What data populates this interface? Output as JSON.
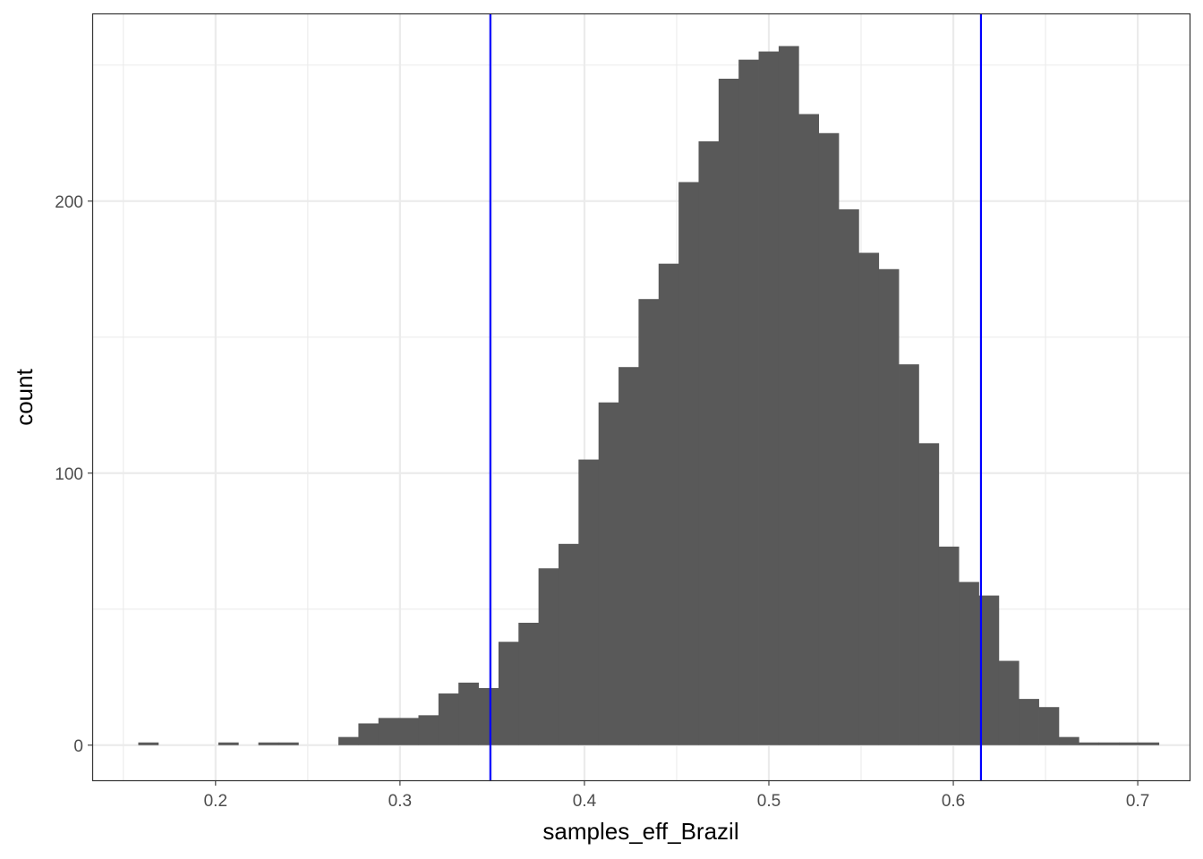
{
  "chart_data": {
    "type": "bar",
    "title": "",
    "xlabel": "samples_eff_Brazil",
    "ylabel": "count",
    "xlim": [
      0.1336,
      0.7281
    ],
    "ylim": [
      -12.9,
      269
    ],
    "x_ticks": [
      "0.2",
      "0.3",
      "0.4",
      "0.5",
      "0.6",
      "0.7"
    ],
    "y_ticks": [
      "0",
      "100",
      "200"
    ],
    "grid": true,
    "bin_width": 0.01085,
    "bin_start": 0.1581,
    "counts": [
      1,
      0,
      0,
      0,
      1,
      0,
      1,
      1,
      0,
      0,
      3,
      8,
      10,
      10,
      11,
      19,
      23,
      21,
      38,
      45,
      65,
      74,
      105,
      126,
      139,
      164,
      177,
      207,
      222,
      245,
      252,
      255,
      257,
      232,
      225,
      197,
      181,
      175,
      140,
      111,
      73,
      60,
      55,
      31,
      17,
      14,
      3,
      1,
      1,
      1,
      1
    ],
    "vlines": [
      0.349,
      0.615
    ],
    "bar_color": "#595959",
    "vline_color": "#0000ff",
    "grid_color": "#ebebeb"
  }
}
